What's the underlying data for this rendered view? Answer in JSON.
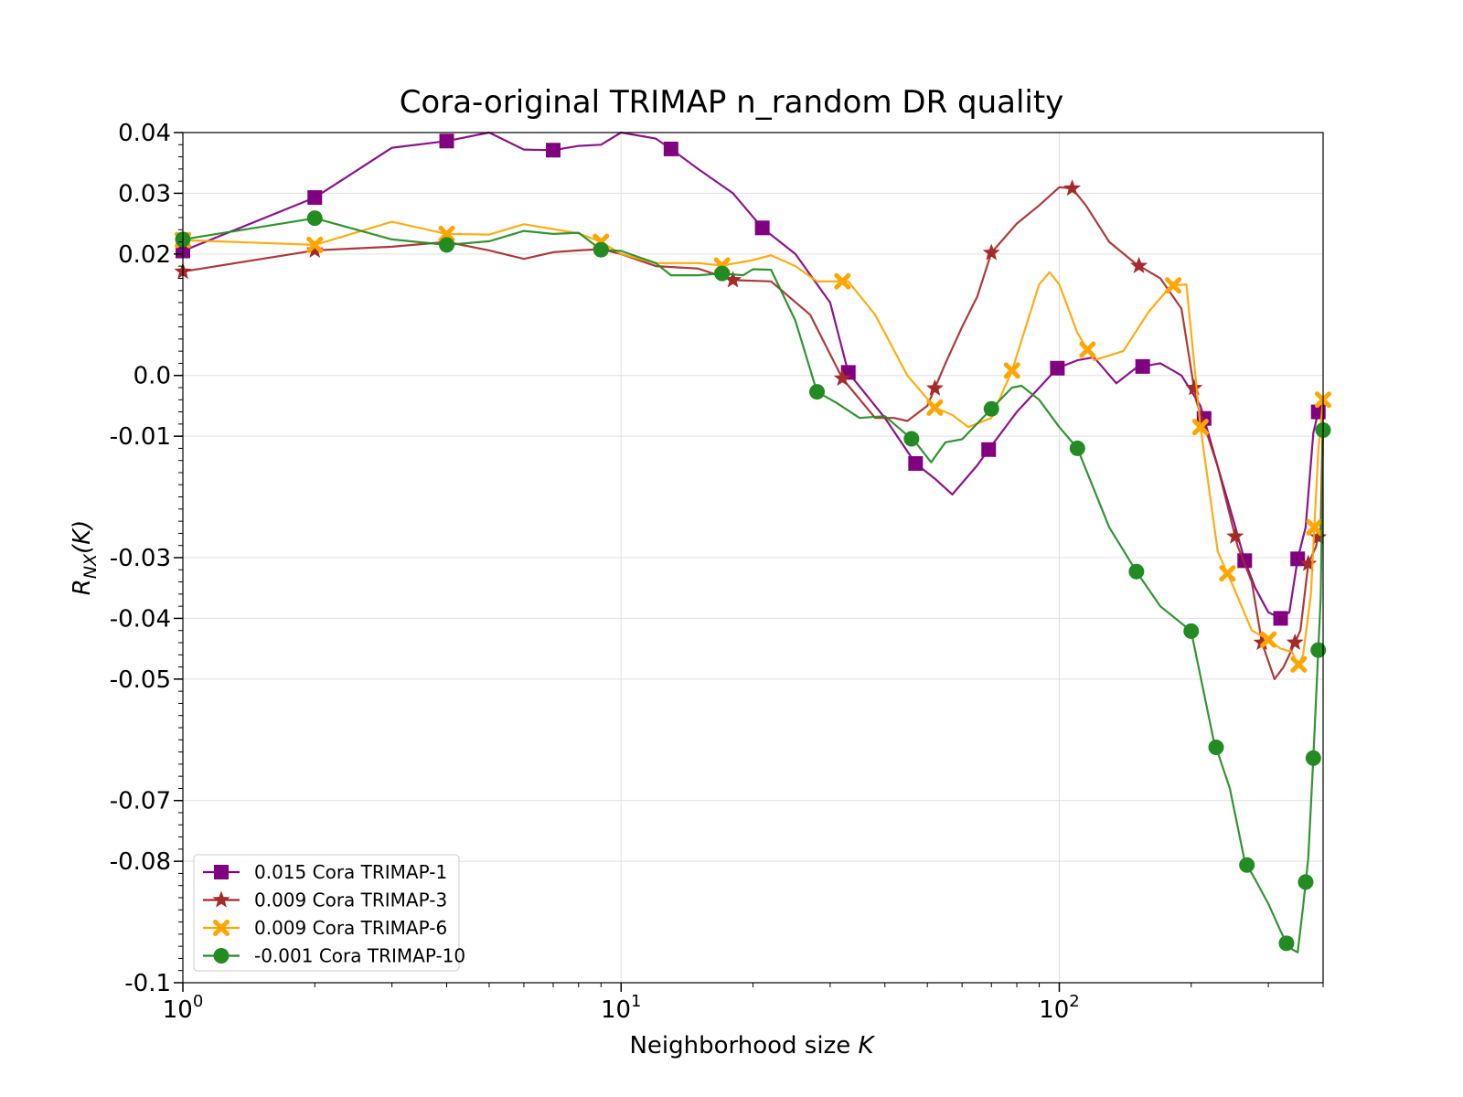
{
  "chart_data": {
    "type": "line",
    "title": "Cora-original TRIMAP n_random DR quality",
    "xlabel": "Neighborhood size K",
    "ylabel": "R_NX(K)",
    "xscale": "log",
    "xlim": [
      1,
      400
    ],
    "ylim": [
      -0.1,
      0.04
    ],
    "grid": true,
    "legend_position": "bottom-left",
    "x_ticks": [
      {
        "value": 1,
        "base": "10",
        "exp": "0"
      },
      {
        "value": 10,
        "base": "10",
        "exp": "1"
      },
      {
        "value": 100,
        "base": "10",
        "exp": "2"
      }
    ],
    "y_ticks": [
      {
        "value": 0.04,
        "label": "0.04"
      },
      {
        "value": 0.03,
        "label": "0.03"
      },
      {
        "value": 0.02,
        "label": "0.02"
      },
      {
        "value": 0.0,
        "label": "0.0"
      },
      {
        "value": -0.01,
        "label": "-0.01"
      },
      {
        "value": -0.03,
        "label": "-0.03"
      },
      {
        "value": -0.04,
        "label": "-0.04"
      },
      {
        "value": -0.05,
        "label": "-0.05"
      },
      {
        "value": -0.07,
        "label": "-0.07"
      },
      {
        "value": -0.08,
        "label": "-0.08"
      },
      {
        "value": -0.1,
        "label": "-0.1"
      }
    ],
    "series": [
      {
        "name": "0.015 Cora TRIMAP-1",
        "color": "#800080",
        "marker": "square",
        "x": [
          1,
          2,
          3,
          4,
          5,
          6,
          7,
          8,
          9,
          10,
          12,
          13,
          15,
          18,
          21,
          25,
          30,
          33,
          40,
          47,
          52,
          57,
          65,
          69,
          80,
          99,
          110,
          120,
          135,
          150,
          170,
          190,
          210,
          230,
          250,
          265,
          280,
          300,
          320,
          335,
          350,
          365,
          380,
          390,
          400
        ],
        "y": [
          0.0205,
          0.0293,
          0.0375,
          0.0386,
          0.04,
          0.0372,
          0.0371,
          0.0378,
          0.038,
          0.04,
          0.039,
          0.0373,
          0.034,
          0.03,
          0.0243,
          0.02,
          0.012,
          0.0005,
          -0.007,
          -0.0145,
          -0.017,
          -0.0196,
          -0.0148,
          -0.0122,
          -0.006,
          0.0012,
          0.0025,
          0.003,
          -0.0013,
          0.0013,
          0.002,
          0.0,
          -0.005,
          -0.015,
          -0.024,
          -0.0305,
          -0.035,
          -0.039,
          -0.04,
          -0.039,
          -0.0302,
          -0.025,
          -0.0095,
          -0.006,
          -0.006
        ],
        "marker_x": [
          1,
          2,
          4,
          7,
          13,
          21,
          33,
          47,
          69,
          99,
          155,
          214,
          265,
          320,
          350,
          390
        ]
      },
      {
        "name": "0.009 Cora TRIMAP-3",
        "color": "#a52a2a",
        "marker": "star",
        "x": [
          1,
          2,
          3,
          4,
          5,
          6,
          7,
          8,
          9,
          10,
          12,
          15,
          18,
          22,
          27,
          32,
          38,
          42,
          45,
          50,
          55,
          60,
          65,
          70,
          80,
          90,
          100,
          107,
          115,
          130,
          150,
          170,
          190,
          205,
          230,
          255,
          275,
          290,
          310,
          325,
          340,
          355,
          370,
          385,
          395,
          400
        ],
        "y": [
          0.0171,
          0.0206,
          0.0212,
          0.022,
          0.0206,
          0.0192,
          0.0203,
          0.0206,
          0.0208,
          0.02,
          0.018,
          0.0176,
          0.0157,
          0.0155,
          0.01,
          -0.0005,
          -0.007,
          -0.007,
          -0.0075,
          -0.005,
          0.002,
          0.008,
          0.013,
          0.0202,
          0.025,
          0.028,
          0.031,
          0.0308,
          0.028,
          0.022,
          0.0183,
          0.016,
          0.011,
          -0.004,
          -0.015,
          -0.028,
          -0.034,
          -0.044,
          -0.05,
          -0.048,
          -0.045,
          -0.042,
          -0.031,
          -0.0283,
          -0.025,
          -0.004
        ],
        "marker_x": [
          1,
          2,
          4,
          18,
          32,
          52,
          70,
          107,
          152,
          203,
          252,
          290,
          345,
          370,
          390
        ]
      },
      {
        "name": "0.009 Cora TRIMAP-6",
        "color": "#ffa500",
        "marker": "x",
        "x": [
          1,
          2,
          3,
          4,
          5,
          6,
          7,
          8,
          9,
          10,
          12,
          15,
          17,
          20,
          22,
          25,
          28,
          33,
          38,
          45,
          52,
          57,
          62,
          70,
          78,
          90,
          95,
          100,
          110,
          120,
          140,
          160,
          180,
          195,
          210,
          230,
          250,
          275,
          300,
          320,
          340,
          350,
          360,
          375,
          390,
          400
        ],
        "y": [
          0.0223,
          0.0215,
          0.0253,
          0.0233,
          0.0232,
          0.0249,
          0.0241,
          0.0234,
          0.022,
          0.02,
          0.0185,
          0.0185,
          0.0181,
          0.019,
          0.0198,
          0.018,
          0.0155,
          0.0155,
          0.01,
          0.0,
          -0.0053,
          -0.0065,
          -0.0085,
          -0.007,
          0.0008,
          0.015,
          0.017,
          0.015,
          0.007,
          0.0025,
          0.004,
          0.0105,
          0.0148,
          0.015,
          -0.0085,
          -0.029,
          -0.0349,
          -0.042,
          -0.0435,
          -0.045,
          -0.0455,
          -0.048,
          -0.046,
          -0.0362,
          -0.0125,
          -0.004
        ],
        "marker_x": [
          1,
          2,
          4,
          9,
          17,
          32,
          52,
          78,
          116,
          182,
          210,
          242,
          300,
          352,
          382,
          400
        ]
      },
      {
        "name": "-0.001 Cora TRIMAP-10",
        "color": "#228b22",
        "marker": "circle",
        "x": [
          1,
          2,
          3,
          4,
          5,
          6,
          7,
          8,
          9,
          10,
          12,
          13,
          15,
          17,
          19,
          20,
          22,
          25,
          28,
          31,
          35,
          40,
          47,
          51,
          55,
          60,
          70,
          78,
          82,
          90,
          100,
          110,
          130,
          150,
          170,
          200,
          225,
          245,
          265,
          280,
          300,
          320,
          330,
          340,
          350,
          360,
          370,
          380,
          395,
          400
        ],
        "y": [
          0.0224,
          0.0259,
          0.0224,
          0.0215,
          0.0221,
          0.0238,
          0.0233,
          0.0235,
          0.0207,
          0.0205,
          0.0185,
          0.0165,
          0.0165,
          0.0168,
          0.0165,
          0.0175,
          0.0174,
          0.009,
          -0.0027,
          -0.0045,
          -0.007,
          -0.0067,
          -0.011,
          -0.0143,
          -0.011,
          -0.0105,
          -0.0055,
          -0.002,
          -0.0017,
          -0.004,
          -0.0085,
          -0.012,
          -0.025,
          -0.0323,
          -0.038,
          -0.0421,
          -0.06,
          -0.068,
          -0.08,
          -0.083,
          -0.087,
          -0.0915,
          -0.0935,
          -0.0945,
          -0.095,
          -0.0875,
          -0.0794,
          -0.063,
          -0.0365,
          -0.009
        ],
        "marker_x": [
          1,
          2,
          4,
          9,
          17,
          28,
          46,
          70,
          110,
          150,
          200,
          228,
          268,
          330,
          365,
          380,
          390,
          400
        ]
      }
    ]
  }
}
